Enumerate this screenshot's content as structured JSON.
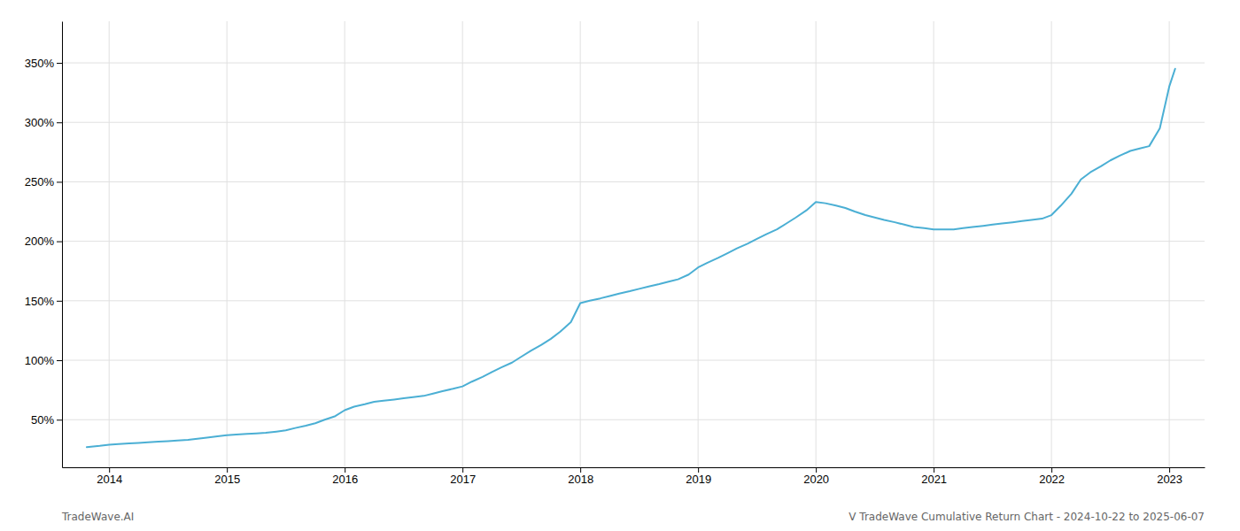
{
  "chart_data": {
    "type": "line",
    "x": [
      2013.81,
      2013.92,
      2014.0,
      2014.08,
      2014.17,
      2014.25,
      2014.33,
      2014.42,
      2014.5,
      2014.58,
      2014.67,
      2014.75,
      2014.83,
      2014.92,
      2015.0,
      2015.08,
      2015.17,
      2015.25,
      2015.33,
      2015.42,
      2015.5,
      2015.58,
      2015.67,
      2015.75,
      2015.83,
      2015.92,
      2016.0,
      2016.08,
      2016.17,
      2016.25,
      2016.33,
      2016.42,
      2016.5,
      2016.58,
      2016.67,
      2016.75,
      2016.83,
      2016.92,
      2017.0,
      2017.08,
      2017.17,
      2017.25,
      2017.33,
      2017.42,
      2017.5,
      2017.58,
      2017.67,
      2017.75,
      2017.83,
      2017.92,
      2018.0,
      2018.08,
      2018.17,
      2018.25,
      2018.33,
      2018.42,
      2018.5,
      2018.58,
      2018.67,
      2018.75,
      2018.83,
      2018.92,
      2019.0,
      2019.08,
      2019.17,
      2019.25,
      2019.33,
      2019.42,
      2019.5,
      2019.58,
      2019.67,
      2019.75,
      2019.83,
      2019.92,
      2020.0,
      2020.08,
      2020.17,
      2020.25,
      2020.33,
      2020.42,
      2020.5,
      2020.58,
      2020.67,
      2020.75,
      2020.83,
      2020.92,
      2021.0,
      2021.08,
      2021.17,
      2021.25,
      2021.33,
      2021.42,
      2021.5,
      2021.58,
      2021.67,
      2021.75,
      2021.83,
      2021.92,
      2022.0,
      2022.08,
      2022.17,
      2022.25,
      2022.33,
      2022.42,
      2022.5,
      2022.58,
      2022.67,
      2022.75,
      2022.83,
      2022.92,
      2023.0,
      2023.05
    ],
    "values": [
      27,
      28,
      29,
      29.5,
      30,
      30.5,
      31,
      31.5,
      32,
      32.5,
      33,
      34,
      35,
      36,
      37,
      37.5,
      38,
      38.5,
      39,
      40,
      41,
      43,
      45,
      47,
      50,
      53,
      58,
      61,
      63,
      65,
      66,
      67,
      68,
      69,
      70,
      72,
      74,
      76,
      78,
      82,
      86,
      90,
      94,
      98,
      103,
      108,
      113,
      118,
      124,
      132,
      148,
      150,
      152,
      154,
      156,
      158,
      160,
      162,
      164,
      166,
      168,
      172,
      178,
      182,
      186,
      190,
      194,
      198,
      202,
      206,
      210,
      215,
      220,
      226,
      233,
      232,
      230,
      228,
      225,
      222,
      220,
      218,
      216,
      214,
      212,
      211,
      210,
      210,
      210,
      211,
      212,
      213,
      214,
      215,
      216,
      217,
      218,
      219,
      222,
      230,
      240,
      252,
      258,
      263,
      268,
      272,
      276,
      278,
      280,
      295,
      330,
      345
    ],
    "color": "#4bafd4",
    "xlim": [
      2013.6,
      2023.3
    ],
    "ylim": [
      10,
      385
    ],
    "xticks": [
      2014,
      2015,
      2016,
      2017,
      2018,
      2019,
      2020,
      2021,
      2022,
      2023
    ],
    "yticks": [
      {
        "value": 50,
        "label": "50%"
      },
      {
        "value": 100,
        "label": "100%"
      },
      {
        "value": 150,
        "label": "150%"
      },
      {
        "value": 200,
        "label": "200%"
      },
      {
        "value": 250,
        "label": "250%"
      },
      {
        "value": 300,
        "label": "300%"
      },
      {
        "value": 350,
        "label": "350%"
      }
    ],
    "grid": true,
    "annotations": [
      "TradeWave.AI",
      "V TradeWave Cumulative Return Chart - 2024-10-22 to 2025-06-07"
    ]
  }
}
